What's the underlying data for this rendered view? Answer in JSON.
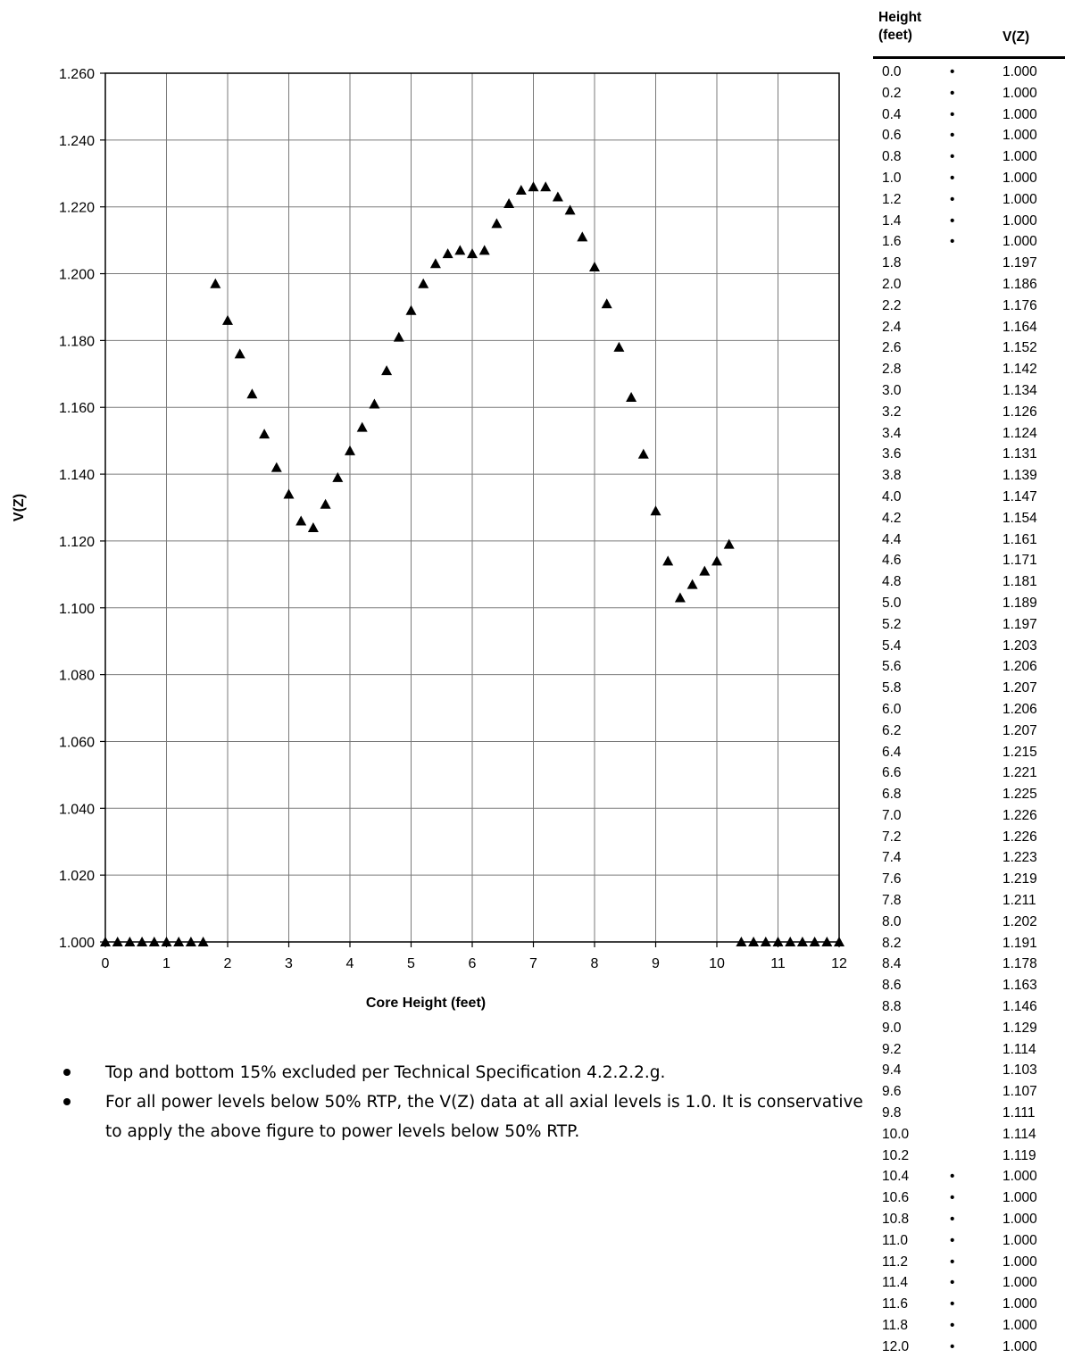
{
  "chart_data": {
    "type": "scatter",
    "title": "",
    "xlabel": "Core Height (feet)",
    "ylabel": "V(Z)",
    "xlim": [
      0,
      12
    ],
    "ylim": [
      1.0,
      1.26
    ],
    "x_ticks": [
      "0",
      "1",
      "2",
      "3",
      "4",
      "5",
      "6",
      "7",
      "8",
      "9",
      "10",
      "11",
      "12"
    ],
    "y_ticks": [
      "1.000",
      "1.020",
      "1.040",
      "1.060",
      "1.080",
      "1.100",
      "1.120",
      "1.140",
      "1.160",
      "1.180",
      "1.200",
      "1.220",
      "1.240",
      "1.260"
    ],
    "grid": true,
    "marker": "triangle",
    "marker_color": "#000000",
    "x": [
      0.0,
      0.2,
      0.4,
      0.6,
      0.8,
      1.0,
      1.2,
      1.4,
      1.6,
      1.8,
      2.0,
      2.2,
      2.4,
      2.6,
      2.8,
      3.0,
      3.2,
      3.4,
      3.6,
      3.8,
      4.0,
      4.2,
      4.4,
      4.6,
      4.8,
      5.0,
      5.2,
      5.4,
      5.6,
      5.8,
      6.0,
      6.2,
      6.4,
      6.6,
      6.8,
      7.0,
      7.2,
      7.4,
      7.6,
      7.8,
      8.0,
      8.2,
      8.4,
      8.6,
      8.8,
      9.0,
      9.2,
      9.4,
      9.6,
      9.8,
      10.0,
      10.2,
      10.4,
      10.6,
      10.8,
      11.0,
      11.2,
      11.4,
      11.6,
      11.8,
      12.0
    ],
    "y": [
      1.0,
      1.0,
      1.0,
      1.0,
      1.0,
      1.0,
      1.0,
      1.0,
      1.0,
      1.197,
      1.186,
      1.176,
      1.164,
      1.152,
      1.142,
      1.134,
      1.126,
      1.124,
      1.131,
      1.139,
      1.147,
      1.154,
      1.161,
      1.171,
      1.181,
      1.189,
      1.197,
      1.203,
      1.206,
      1.207,
      1.206,
      1.207,
      1.215,
      1.221,
      1.225,
      1.226,
      1.226,
      1.223,
      1.219,
      1.211,
      1.202,
      1.191,
      1.178,
      1.163,
      1.146,
      1.129,
      1.114,
      1.103,
      1.107,
      1.111,
      1.114,
      1.119,
      1.0,
      1.0,
      1.0,
      1.0,
      1.0,
      1.0,
      1.0,
      1.0,
      1.0
    ]
  },
  "notes": [
    "Top and bottom 15% excluded per Technical Specification 4.2.2.2.g.",
    "For all power levels below 50% RTP, the V(Z) data at all axial levels is 1.0.  It is conservative to apply the above figure to power levels below 50% RTP."
  ],
  "table": {
    "header_height_line1": "Height",
    "header_height_line2": "(feet)",
    "header_vz": "V(Z)",
    "marker_glyph": "•",
    "rows": [
      {
        "h": "0.0",
        "v": "1.000",
        "m": true
      },
      {
        "h": "0.2",
        "v": "1.000",
        "m": true
      },
      {
        "h": "0.4",
        "v": "1.000",
        "m": true
      },
      {
        "h": "0.6",
        "v": "1.000",
        "m": true
      },
      {
        "h": "0.8",
        "v": "1.000",
        "m": true
      },
      {
        "h": "1.0",
        "v": "1.000",
        "m": true
      },
      {
        "h": "1.2",
        "v": "1.000",
        "m": true
      },
      {
        "h": "1.4",
        "v": "1.000",
        "m": true
      },
      {
        "h": "1.6",
        "v": "1.000",
        "m": true
      },
      {
        "h": "1.8",
        "v": "1.197",
        "m": false
      },
      {
        "h": "2.0",
        "v": "1.186",
        "m": false
      },
      {
        "h": "2.2",
        "v": "1.176",
        "m": false
      },
      {
        "h": "2.4",
        "v": "1.164",
        "m": false
      },
      {
        "h": "2.6",
        "v": "1.152",
        "m": false
      },
      {
        "h": "2.8",
        "v": "1.142",
        "m": false
      },
      {
        "h": "3.0",
        "v": "1.134",
        "m": false
      },
      {
        "h": "3.2",
        "v": "1.126",
        "m": false
      },
      {
        "h": "3.4",
        "v": "1.124",
        "m": false
      },
      {
        "h": "3.6",
        "v": "1.131",
        "m": false
      },
      {
        "h": "3.8",
        "v": "1.139",
        "m": false
      },
      {
        "h": "4.0",
        "v": "1.147",
        "m": false
      },
      {
        "h": "4.2",
        "v": "1.154",
        "m": false
      },
      {
        "h": "4.4",
        "v": "1.161",
        "m": false
      },
      {
        "h": "4.6",
        "v": "1.171",
        "m": false
      },
      {
        "h": "4.8",
        "v": "1.181",
        "m": false
      },
      {
        "h": "5.0",
        "v": "1.189",
        "m": false
      },
      {
        "h": "5.2",
        "v": "1.197",
        "m": false
      },
      {
        "h": "5.4",
        "v": "1.203",
        "m": false
      },
      {
        "h": "5.6",
        "v": "1.206",
        "m": false
      },
      {
        "h": "5.8",
        "v": "1.207",
        "m": false
      },
      {
        "h": "6.0",
        "v": "1.206",
        "m": false
      },
      {
        "h": "6.2",
        "v": "1.207",
        "m": false
      },
      {
        "h": "6.4",
        "v": "1.215",
        "m": false
      },
      {
        "h": "6.6",
        "v": "1.221",
        "m": false
      },
      {
        "h": "6.8",
        "v": "1.225",
        "m": false
      },
      {
        "h": "7.0",
        "v": "1.226",
        "m": false
      },
      {
        "h": "7.2",
        "v": "1.226",
        "m": false
      },
      {
        "h": "7.4",
        "v": "1.223",
        "m": false
      },
      {
        "h": "7.6",
        "v": "1.219",
        "m": false
      },
      {
        "h": "7.8",
        "v": "1.211",
        "m": false
      },
      {
        "h": "8.0",
        "v": "1.202",
        "m": false
      },
      {
        "h": "8.2",
        "v": "1.191",
        "m": false
      },
      {
        "h": "8.4",
        "v": "1.178",
        "m": false
      },
      {
        "h": "8.6",
        "v": "1.163",
        "m": false
      },
      {
        "h": "8.8",
        "v": "1.146",
        "m": false
      },
      {
        "h": "9.0",
        "v": "1.129",
        "m": false
      },
      {
        "h": "9.2",
        "v": "1.114",
        "m": false
      },
      {
        "h": "9.4",
        "v": "1.103",
        "m": false
      },
      {
        "h": "9.6",
        "v": "1.107",
        "m": false
      },
      {
        "h": "9.8",
        "v": "1.111",
        "m": false
      },
      {
        "h": "10.0",
        "v": "1.114",
        "m": false
      },
      {
        "h": "10.2",
        "v": "1.119",
        "m": false
      },
      {
        "h": "10.4",
        "v": "1.000",
        "m": true
      },
      {
        "h": "10.6",
        "v": "1.000",
        "m": true
      },
      {
        "h": "10.8",
        "v": "1.000",
        "m": true
      },
      {
        "h": "11.0",
        "v": "1.000",
        "m": true
      },
      {
        "h": "11.2",
        "v": "1.000",
        "m": true
      },
      {
        "h": "11.4",
        "v": "1.000",
        "m": true
      },
      {
        "h": "11.6",
        "v": "1.000",
        "m": true
      },
      {
        "h": "11.8",
        "v": "1.000",
        "m": true
      },
      {
        "h": "12.0",
        "v": "1.000",
        "m": true
      }
    ]
  }
}
